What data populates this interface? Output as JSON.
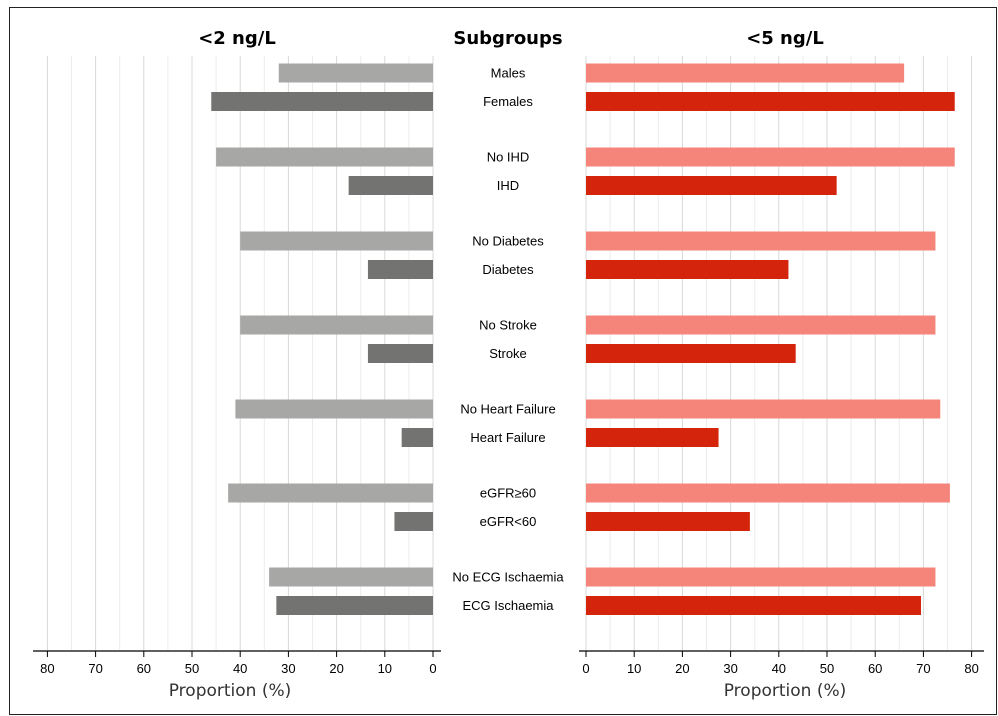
{
  "chart_data": {
    "type": "bar",
    "orientation": "horizontal",
    "center_title": "Subgroups",
    "categories": [
      "Males",
      "Females",
      "No IHD",
      "IHD",
      "No Diabetes",
      "Diabetes",
      "No Stroke",
      "Stroke",
      "No Heart Failure",
      "Heart Failure",
      "eGFR≥60",
      "eGFR<60",
      "No ECG Ischaemia",
      "ECG Ischaemia"
    ],
    "panels": [
      {
        "title": "<2 ng/L",
        "xlabel": "Proportion (%)",
        "direction": "reversed",
        "xlim": [
          0,
          80
        ],
        "ticks": [
          80,
          70,
          60,
          50,
          40,
          30,
          20,
          10,
          0
        ],
        "series": [
          {
            "values": [
              32,
              46,
              45,
              17.5,
              40,
              13.5,
              40,
              13.5,
              41,
              6.5,
              42.5,
              8
            ]
          },
          {
            "values": [
              34,
              32.5
            ]
          }
        ],
        "values": [
          32,
          46,
          45,
          17.5,
          40,
          13.5,
          40,
          13.5,
          41,
          6.5,
          42.5,
          8,
          34,
          32.5
        ],
        "colors": {
          "light": "#a7a8a6",
          "dark": "#737471"
        }
      },
      {
        "title": "<5 ng/L",
        "xlabel": "Proportion (%)",
        "direction": "normal",
        "xlim": [
          0,
          80
        ],
        "ticks": [
          0,
          10,
          20,
          30,
          40,
          50,
          60,
          70,
          80
        ],
        "values": [
          66,
          76.5,
          76.5,
          52,
          72.5,
          42,
          72.5,
          43.5,
          73.5,
          27.5,
          75.5,
          34,
          72.5,
          69.5
        ],
        "colors": {
          "light": "#f5847a",
          "dark": "#d4240b"
        }
      }
    ],
    "grid": true
  }
}
